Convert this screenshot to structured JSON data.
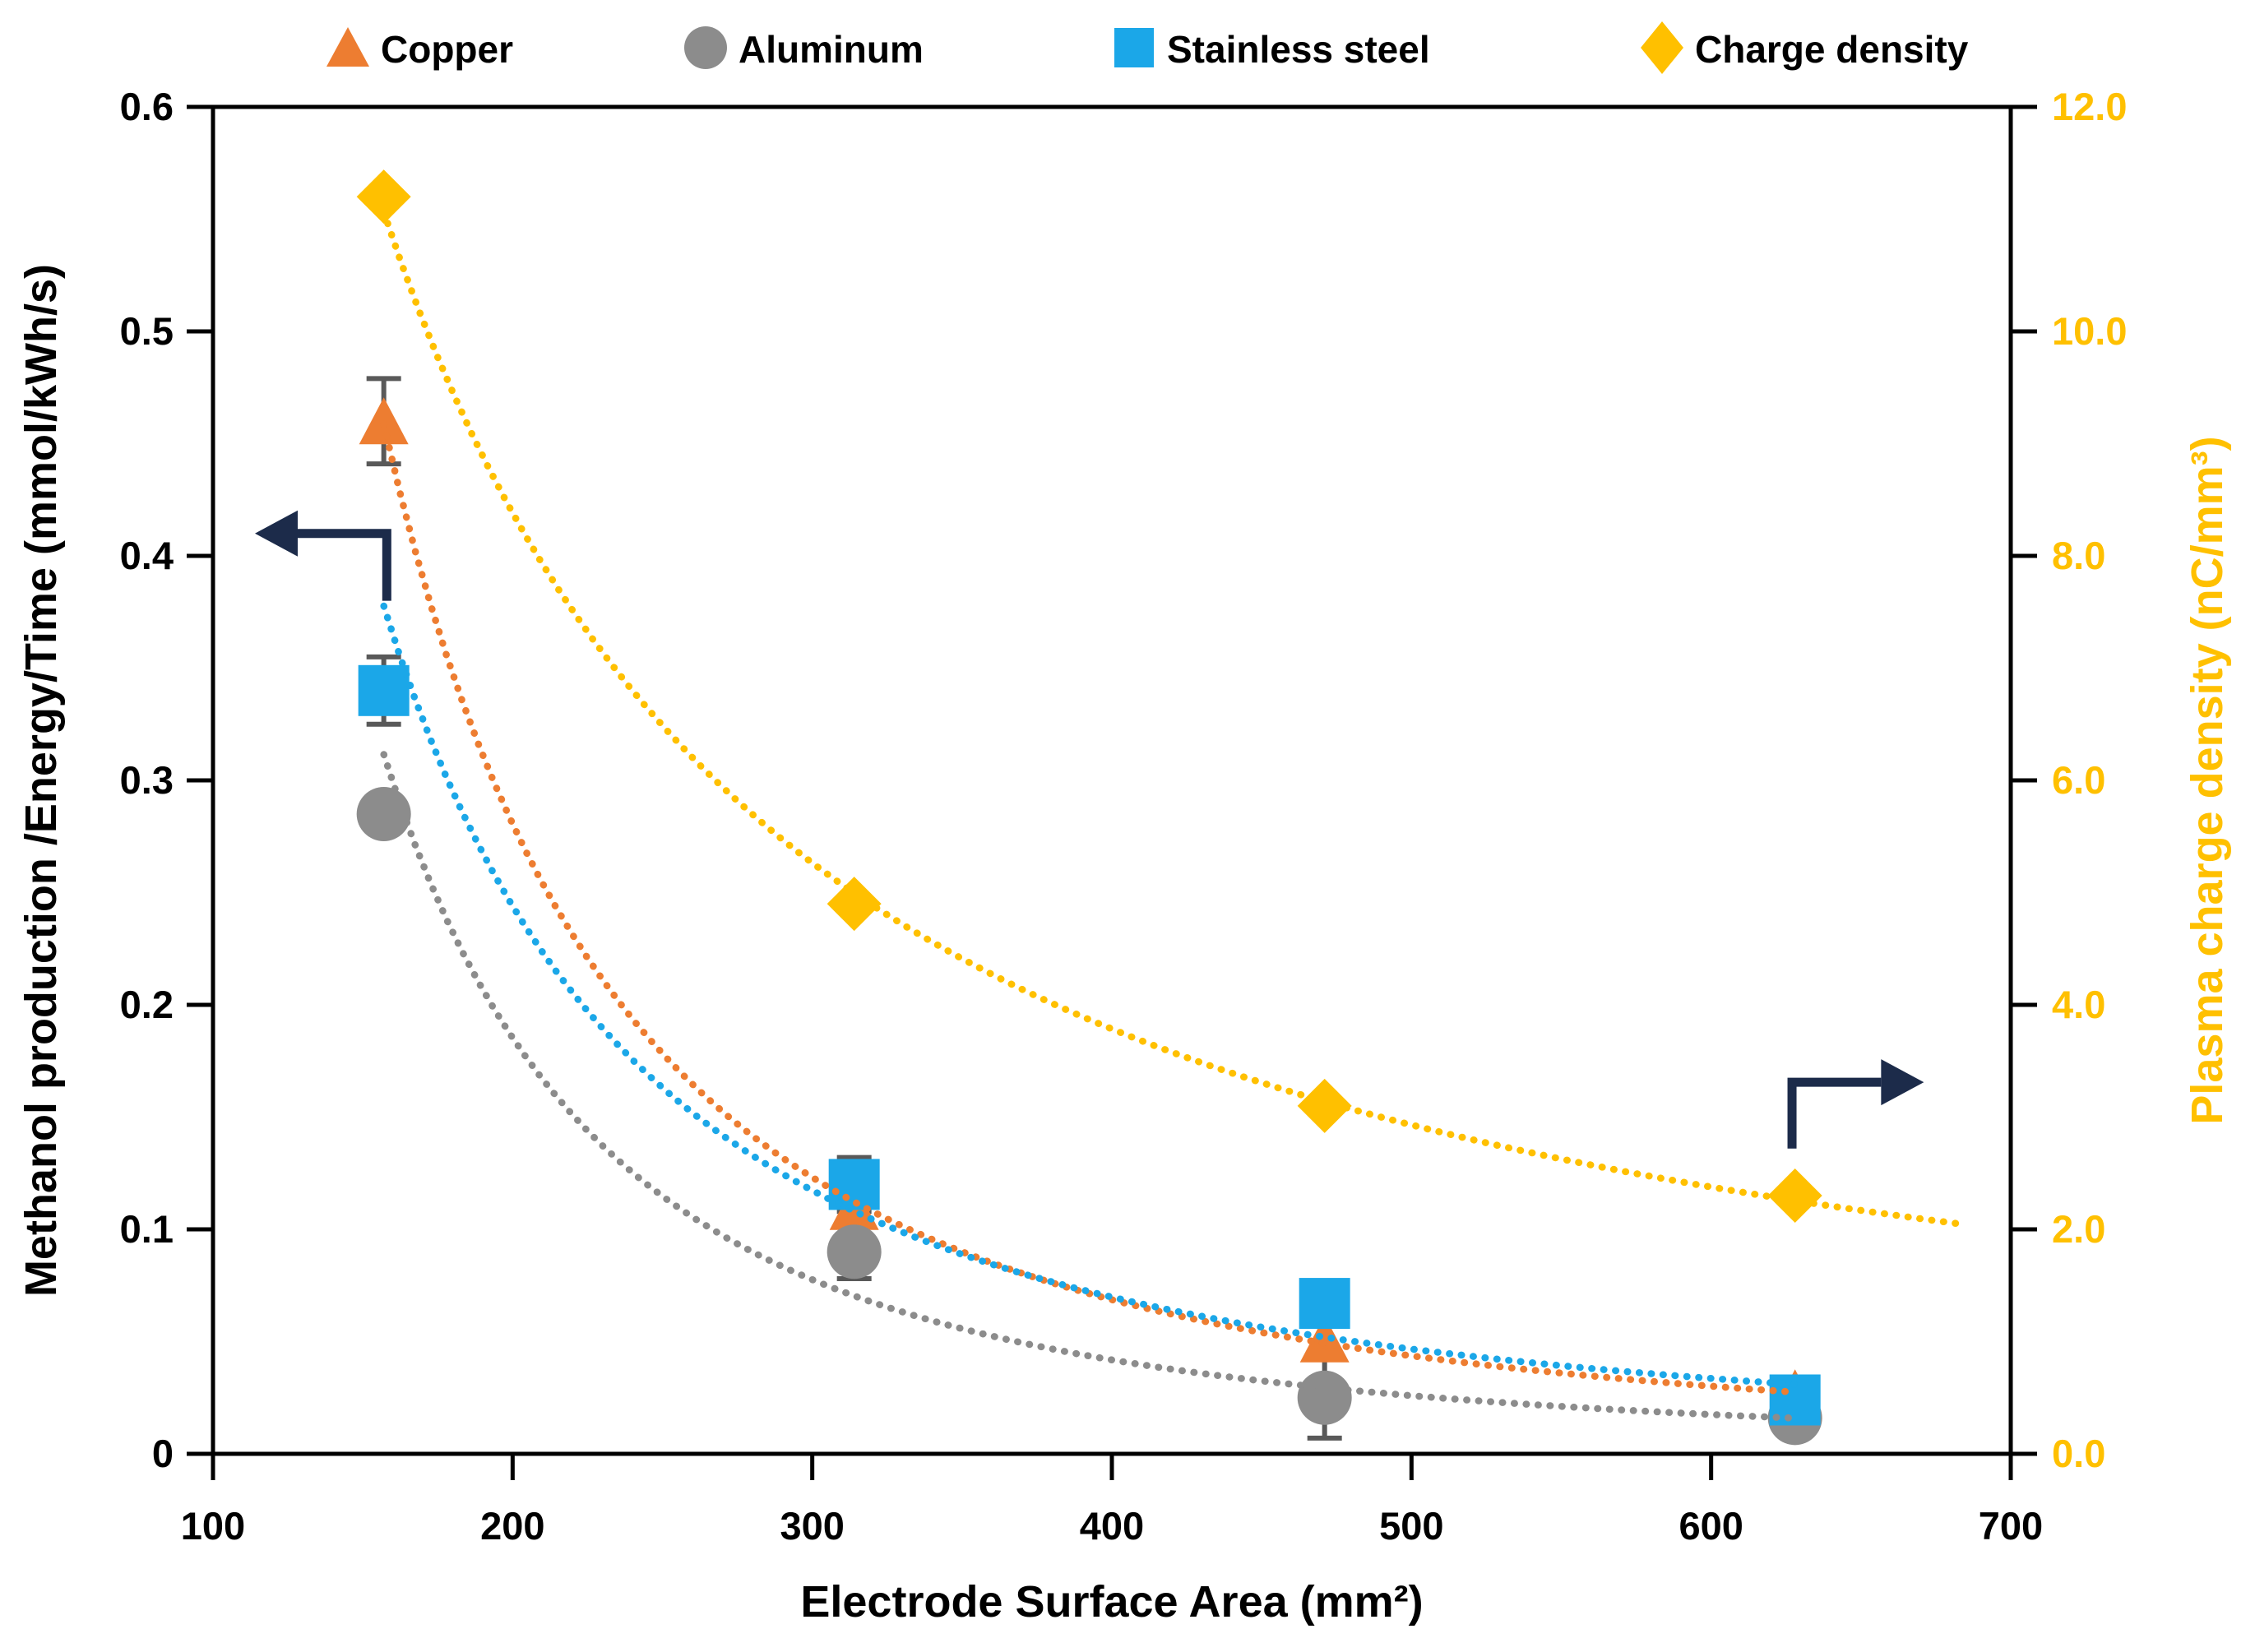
{
  "chart_data": {
    "type": "scatter",
    "x_label": "Electrode Surface Area (mm²)",
    "y_left_label": "Methanol production /Energy/Time (mmol/kWh/s)",
    "y_right_label": "Plasma charge density (nC/mm³)",
    "x_range": [
      100,
      700
    ],
    "y_left_range": [
      0,
      0.6
    ],
    "y_right_range": [
      0,
      12
    ],
    "grid": false,
    "legend_position": "top",
    "x_ticks": [
      100,
      200,
      300,
      400,
      500,
      600,
      700
    ],
    "x_tick_labels": [
      "100",
      "200",
      "300",
      "400",
      "500",
      "600",
      "700"
    ],
    "y_left_ticks": [
      0,
      0.1,
      0.2,
      0.3,
      0.4,
      0.5,
      0.6
    ],
    "y_left_tick_labels": [
      "0",
      "0.1",
      "0.2",
      "0.3",
      "0.4",
      "0.5",
      "0.6"
    ],
    "y_right_ticks": [
      0,
      2,
      4,
      6,
      8,
      10,
      12
    ],
    "y_right_tick_labels": [
      "0.0",
      "2.0",
      "4.0",
      "6.0",
      "8.0",
      "10.0",
      "12.0"
    ],
    "x": [
      157,
      314,
      471,
      628
    ],
    "series": [
      {
        "name": "Copper",
        "marker": "triangle",
        "color": "#ED7D31",
        "axis": "left",
        "values": [
          0.46,
          0.11,
          0.051,
          0.027
        ],
        "errors": [
          0.019,
          null,
          null,
          null
        ],
        "trendline": "power-dotted",
        "trend_extend_x": 0
      },
      {
        "name": "Aluminum",
        "marker": "circle",
        "color": "#8C8C8C",
        "axis": "left",
        "values": [
          0.285,
          0.09,
          0.025,
          0.016
        ],
        "errors": [
          null,
          0.012,
          0.018,
          null
        ],
        "trendline": "power-dotted",
        "trend_extend_x": 0
      },
      {
        "name": "Stainless steel",
        "marker": "square",
        "color": "#1BA7E8",
        "axis": "left",
        "values": [
          0.34,
          0.12,
          0.067,
          0.024
        ],
        "errors": [
          0.015,
          0.012,
          null,
          null
        ],
        "trendline": "power-dotted",
        "trend_extend_x": 0
      },
      {
        "name": "Charge density",
        "marker": "diamond",
        "color": "#FFC000",
        "axis": "right",
        "values": [
          11.2,
          4.9,
          3.1,
          2.3
        ],
        "errors": [
          null,
          null,
          null,
          null
        ],
        "trendline": "power-dotted",
        "trend_extend_x": 54
      }
    ],
    "annotations": {
      "left_axis_arrow": {
        "color": "#1C2B4A",
        "desc": "elbow arrow pointing left toward the left axis",
        "x_from": 158,
        "y_from": 0.38,
        "y_corner": 0.41,
        "x_to": 114
      },
      "right_axis_arrow": {
        "color": "#1C2B4A",
        "desc": "elbow arrow pointing right toward the right axis",
        "x_from": 627,
        "y_from": 2.72,
        "y_corner": 3.31,
        "x_to": 671
      }
    },
    "error_bar_color": "#595959",
    "axis_color": "#000000",
    "right_axis_text_color": "#FFC000"
  }
}
